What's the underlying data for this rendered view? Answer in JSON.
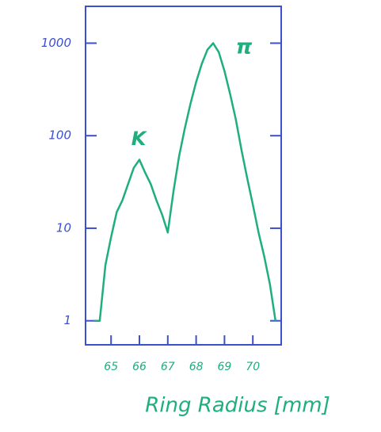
{
  "chart_data": {
    "type": "line",
    "x_label": "Ring Radius [mm]",
    "annotations": [
      "K",
      "π"
    ],
    "x": [
      64.4,
      64.6,
      64.8,
      65.0,
      65.2,
      65.4,
      65.6,
      65.8,
      66.0,
      66.2,
      66.4,
      66.6,
      66.8,
      67.0,
      67.2,
      67.4,
      67.6,
      67.8,
      68.0,
      68.2,
      68.4,
      68.6,
      68.8,
      69.0,
      69.2,
      69.4,
      69.6,
      69.8,
      70.0,
      70.2,
      70.4,
      70.6,
      70.8
    ],
    "values": [
      1,
      1,
      4,
      8,
      15,
      20,
      30,
      45,
      55,
      40,
      30,
      20,
      14,
      9,
      25,
      60,
      120,
      220,
      380,
      600,
      850,
      1000,
      800,
      500,
      280,
      150,
      70,
      35,
      18,
      9,
      5,
      2.5,
      1
    ],
    "color": "#1fae7e",
    "axis_color": "#3b4fd0",
    "xlim": [
      64.1,
      71.0
    ],
    "xticks": [
      65,
      66,
      67,
      68,
      69,
      70
    ],
    "ylim": [
      0.55,
      2500
    ],
    "yticks": [
      1,
      10,
      100,
      1000
    ],
    "log_y": true
  }
}
